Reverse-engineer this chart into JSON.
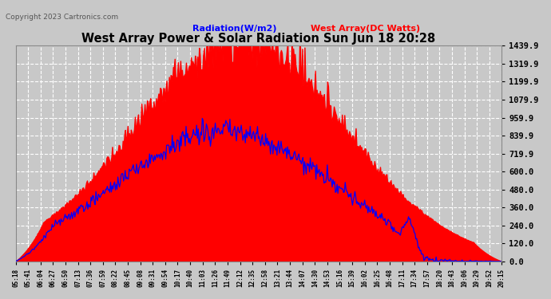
{
  "title": "West Array Power & Solar Radiation Sun Jun 18 20:28",
  "copyright": "Copyright 2023 Cartronics.com",
  "legend_radiation": "Radiation(W/m2)",
  "legend_west": "West Array(DC Watts)",
  "bg_color": "#c8c8c8",
  "plot_bg_color": "#c8c8c8",
  "grid_color": "#ffffff",
  "title_color": "#000000",
  "radiation_color": "#0000ff",
  "west_color": "#ff0000",
  "copyright_color": "#555555",
  "yticks": [
    0.0,
    120.0,
    240.0,
    360.0,
    480.0,
    600.0,
    719.9,
    839.9,
    959.9,
    1079.9,
    1199.9,
    1319.9,
    1439.9
  ],
  "ymax": 1439.9,
  "xtick_labels": [
    "05:18",
    "05:41",
    "06:04",
    "06:27",
    "06:50",
    "07:13",
    "07:36",
    "07:59",
    "08:22",
    "08:45",
    "09:08",
    "09:31",
    "09:54",
    "10:17",
    "10:40",
    "11:03",
    "11:26",
    "11:49",
    "12:12",
    "12:35",
    "12:58",
    "13:21",
    "13:44",
    "14:07",
    "14:30",
    "14:53",
    "15:16",
    "15:39",
    "16:02",
    "16:25",
    "16:48",
    "17:11",
    "17:34",
    "17:57",
    "18:20",
    "18:43",
    "19:06",
    "19:29",
    "19:52",
    "20:15"
  ],
  "n_points": 600
}
